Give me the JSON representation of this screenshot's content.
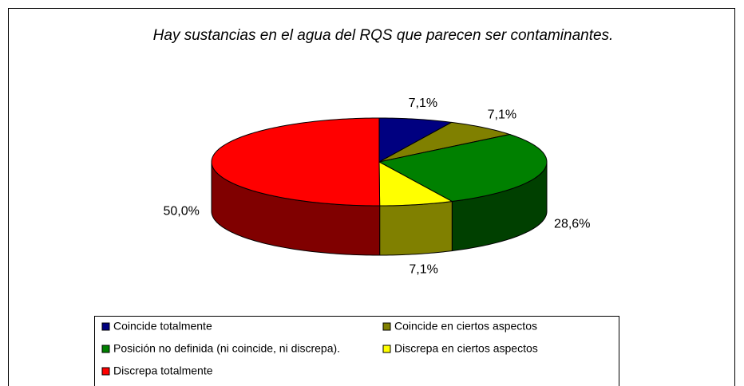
{
  "chart_data": {
    "type": "pie",
    "title": "Hay sustancias en el agua del RQS que parecen ser contaminantes.",
    "categories": [
      "Coincide totalmente",
      "Coincide en ciertos aspectos",
      "Posición no definida (ni coincide, ni discrepa).",
      "Discrepa en ciertos aspectos",
      "Discrepa totalmente"
    ],
    "values": [
      7.1,
      7.1,
      28.6,
      7.1,
      50.0
    ],
    "value_labels": [
      "7,1%",
      "7,1%",
      "28,6%",
      "7,1%",
      "50,0%"
    ],
    "colors": [
      "#000080",
      "#808000",
      "#008000",
      "#ffff00",
      "#ff0000"
    ],
    "legend": "bottom"
  }
}
